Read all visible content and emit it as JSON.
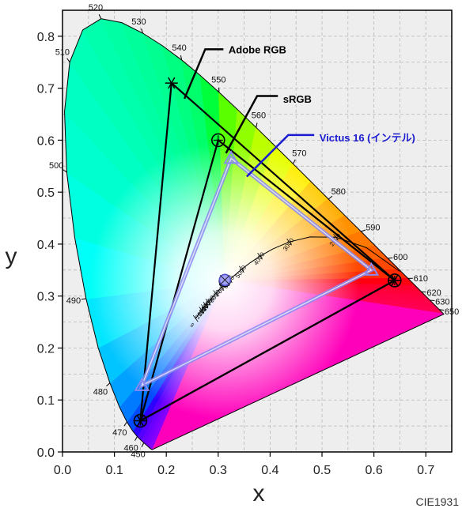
{
  "chart_data": {
    "type": "scatter",
    "footer": "CIE1931",
    "xlabel": "x",
    "ylabel": "y",
    "xlim": [
      0,
      0.75
    ],
    "ylim": [
      0,
      0.85
    ],
    "xticks": [
      "0.0",
      "0.1",
      "0.2",
      "0.3",
      "0.4",
      "0.5",
      "0.6",
      "0.7"
    ],
    "yticks": [
      "0.0",
      "0.1",
      "0.2",
      "0.3",
      "0.4",
      "0.5",
      "0.6",
      "0.7",
      "0.8"
    ],
    "grid": true,
    "spectral_locus": [
      [
        0.1741,
        0.005
      ],
      [
        0.1738,
        0.0049
      ],
      [
        0.1736,
        0.0049
      ],
      [
        0.1733,
        0.0048
      ],
      [
        0.173,
        0.0048
      ],
      [
        0.1726,
        0.0048
      ],
      [
        0.1721,
        0.0048
      ],
      [
        0.1714,
        0.0051
      ],
      [
        0.1703,
        0.0058
      ],
      [
        0.1689,
        0.0069
      ],
      [
        0.1669,
        0.0086
      ],
      [
        0.1644,
        0.0109
      ],
      [
        0.1611,
        0.0138
      ],
      [
        0.1566,
        0.0177
      ],
      [
        0.151,
        0.0227
      ],
      [
        0.144,
        0.0297
      ],
      [
        0.1355,
        0.0399
      ],
      [
        0.1241,
        0.0578
      ],
      [
        0.1096,
        0.0868
      ],
      [
        0.0913,
        0.1327
      ],
      [
        0.0687,
        0.2007
      ],
      [
        0.0454,
        0.295
      ],
      [
        0.0235,
        0.4127
      ],
      [
        0.0082,
        0.5384
      ],
      [
        0.0039,
        0.6548
      ],
      [
        0.0139,
        0.7502
      ],
      [
        0.0389,
        0.812
      ],
      [
        0.0743,
        0.8338
      ],
      [
        0.1142,
        0.8262
      ],
      [
        0.1547,
        0.8059
      ],
      [
        0.1929,
        0.7816
      ],
      [
        0.2296,
        0.7543
      ],
      [
        0.2658,
        0.7243
      ],
      [
        0.3016,
        0.6923
      ],
      [
        0.3373,
        0.6589
      ],
      [
        0.3731,
        0.6245
      ],
      [
        0.4087,
        0.5896
      ],
      [
        0.4441,
        0.5547
      ],
      [
        0.4788,
        0.5202
      ],
      [
        0.5125,
        0.4866
      ],
      [
        0.5448,
        0.4544
      ],
      [
        0.5752,
        0.4242
      ],
      [
        0.6029,
        0.3965
      ],
      [
        0.627,
        0.3725
      ],
      [
        0.6482,
        0.3514
      ],
      [
        0.6658,
        0.334
      ],
      [
        0.6801,
        0.3197
      ],
      [
        0.6915,
        0.3083
      ],
      [
        0.7006,
        0.2993
      ],
      [
        0.7079,
        0.292
      ],
      [
        0.714,
        0.2859
      ],
      [
        0.719,
        0.2809
      ],
      [
        0.723,
        0.277
      ],
      [
        0.726,
        0.274
      ],
      [
        0.7283,
        0.2717
      ],
      [
        0.73,
        0.27
      ],
      [
        0.7311,
        0.2689
      ],
      [
        0.732,
        0.268
      ],
      [
        0.7327,
        0.2673
      ],
      [
        0.7334,
        0.2666
      ],
      [
        0.734,
        0.266
      ],
      [
        0.7344,
        0.2656
      ],
      [
        0.7346,
        0.2654
      ],
      [
        0.7347,
        0.2653
      ]
    ],
    "wavelength_labels": [
      {
        "text": "450",
        "x": 0.1566,
        "y": 0.0177
      },
      {
        "text": "460",
        "x": 0.144,
        "y": 0.0297
      },
      {
        "text": "470",
        "x": 0.1241,
        "y": 0.0578
      },
      {
        "text": "480",
        "x": 0.0913,
        "y": 0.1327
      },
      {
        "text": "490",
        "x": 0.0454,
        "y": 0.295
      },
      {
        "text": "500",
        "x": 0.0082,
        "y": 0.5384
      },
      {
        "text": "510",
        "x": 0.0139,
        "y": 0.7502
      },
      {
        "text": "520",
        "x": 0.0743,
        "y": 0.8338
      },
      {
        "text": "530",
        "x": 0.1547,
        "y": 0.8059
      },
      {
        "text": "540",
        "x": 0.2296,
        "y": 0.7543
      },
      {
        "text": "550",
        "x": 0.3016,
        "y": 0.6923
      },
      {
        "text": "560",
        "x": 0.3731,
        "y": 0.6245
      },
      {
        "text": "570",
        "x": 0.4441,
        "y": 0.5547
      },
      {
        "text": "580",
        "x": 0.5125,
        "y": 0.4866
      },
      {
        "text": "590",
        "x": 0.5752,
        "y": 0.4242
      },
      {
        "text": "600",
        "x": 0.627,
        "y": 0.3725
      },
      {
        "text": "610",
        "x": 0.6658,
        "y": 0.334
      },
      {
        "text": "620",
        "x": 0.6915,
        "y": 0.3083
      },
      {
        "text": "630",
        "x": 0.7079,
        "y": 0.292
      },
      {
        "text": "650",
        "x": 0.726,
        "y": 0.274
      }
    ],
    "planckian_locus": [
      [
        0.6499,
        0.3474
      ],
      [
        0.5857,
        0.3931
      ],
      [
        0.5267,
        0.4133
      ],
      [
        0.477,
        0.4137
      ],
      [
        0.4369,
        0.4041
      ],
      [
        0.4053,
        0.3907
      ],
      [
        0.3805,
        0.3768
      ],
      [
        0.3608,
        0.3635
      ],
      [
        0.3451,
        0.3516
      ],
      [
        0.3221,
        0.3318
      ],
      [
        0.3064,
        0.3166
      ],
      [
        0.2952,
        0.3048
      ],
      [
        0.2869,
        0.2956
      ],
      [
        0.2807,
        0.2883
      ],
      [
        0.2759,
        0.2824
      ],
      [
        0.272,
        0.2776
      ],
      [
        0.2565,
        0.2568
      ]
    ],
    "cct_labels": [
      {
        "text": "2000",
        "x": 0.5267,
        "y": 0.4133
      },
      {
        "text": "3000",
        "x": 0.4369,
        "y": 0.4041
      },
      {
        "text": "4000",
        "x": 0.3805,
        "y": 0.3768
      },
      {
        "text": "5000",
        "x": 0.3451,
        "y": 0.3516
      },
      {
        "text": "6000",
        "x": 0.3221,
        "y": 0.3318
      },
      {
        "text": "7000",
        "x": 0.3064,
        "y": 0.3166
      },
      {
        "text": "8000",
        "x": 0.2952,
        "y": 0.3048
      },
      {
        "text": "10000",
        "x": 0.2807,
        "y": 0.2883
      },
      {
        "text": "12000",
        "x": 0.2759,
        "y": 0.2824
      },
      {
        "text": "15000",
        "x": 0.272,
        "y": 0.2776
      },
      {
        "text": "20000",
        "x": 0.268,
        "y": 0.273
      },
      {
        "text": "∞",
        "x": 0.2565,
        "y": 0.2568
      }
    ],
    "series": [
      {
        "name": "Adobe RGB",
        "color": "#000000",
        "marker": "star",
        "points": [
          [
            0.64,
            0.33
          ],
          [
            0.21,
            0.71
          ],
          [
            0.15,
            0.06
          ]
        ],
        "white_point": null,
        "label_at": [
          0.32,
          0.775
        ],
        "leader": [
          [
            0.31,
            0.775
          ],
          [
            0.275,
            0.775
          ],
          [
            0.235,
            0.68
          ]
        ]
      },
      {
        "name": "sRGB",
        "color": "#000000",
        "marker": "circle-plus",
        "points": [
          [
            0.64,
            0.33
          ],
          [
            0.3,
            0.6
          ],
          [
            0.15,
            0.06
          ]
        ],
        "white_point": [
          0.3127,
          0.329
        ],
        "label_at": [
          0.425,
          0.68
        ],
        "leader": [
          [
            0.415,
            0.685
          ],
          [
            0.375,
            0.685
          ],
          [
            0.315,
            0.575
          ]
        ]
      },
      {
        "name": "Victus 16 (インテル)",
        "color": "#8a8af0",
        "label_color": "#1a1ad0",
        "marker": "triangle",
        "points": [
          [
            0.595,
            0.35
          ],
          [
            0.325,
            0.565
          ],
          [
            0.153,
            0.128
          ]
        ],
        "white_point": [
          0.313,
          0.331
        ],
        "label_at": [
          0.495,
          0.605
        ],
        "leader": [
          [
            0.485,
            0.61
          ],
          [
            0.435,
            0.61
          ],
          [
            0.355,
            0.53
          ]
        ]
      }
    ]
  }
}
